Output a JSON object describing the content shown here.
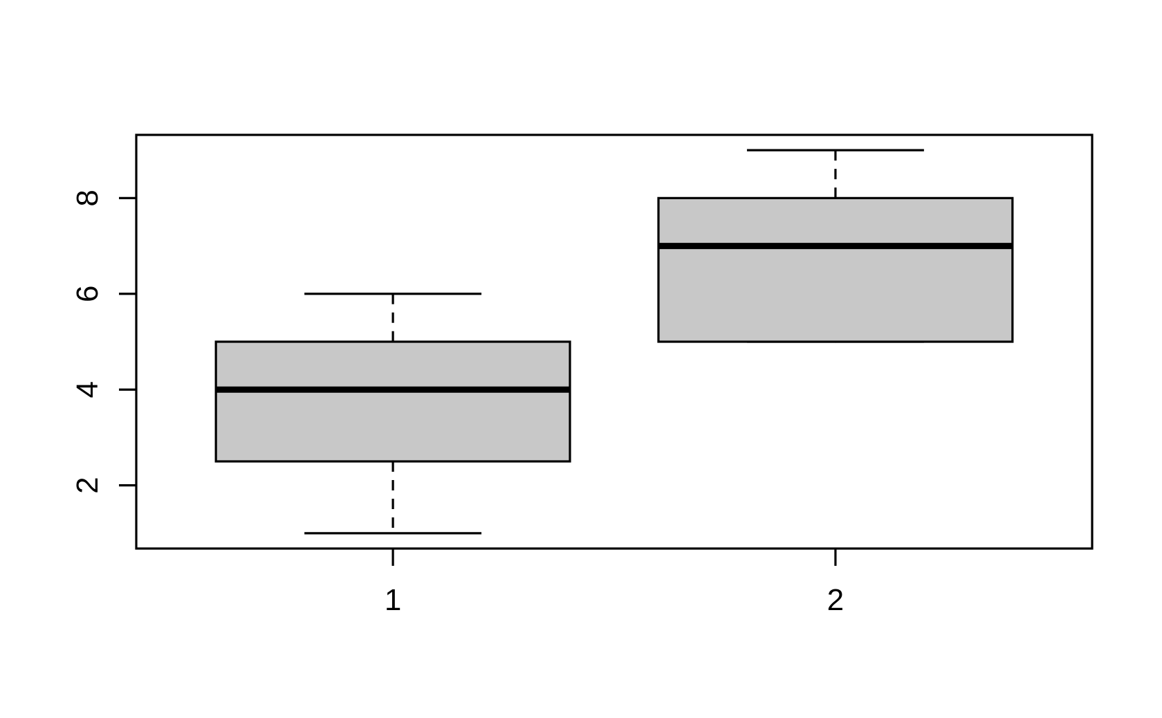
{
  "chart_data": {
    "type": "boxplot",
    "title": "",
    "xlabel": "",
    "ylabel": "",
    "categories": [
      "1",
      "2"
    ],
    "series": [
      {
        "name": "1",
        "min": 1,
        "q1": 2.5,
        "median": 4,
        "q3": 5,
        "max": 6
      },
      {
        "name": "2",
        "min": 5,
        "q1": 5,
        "median": 7,
        "q3": 8,
        "max": 9
      }
    ],
    "x_positions": [
      1,
      2
    ],
    "yticks": [
      2,
      4,
      6,
      8
    ],
    "ylim": [
      0.68,
      9.32
    ],
    "xlim": [
      0.42,
      2.58
    ],
    "box_width": 0.8,
    "cap_width": 0.4,
    "grid": false,
    "legend": null,
    "colors": {
      "box_fill": "#c8c8c8",
      "line": "#000000",
      "background": "#ffffff"
    }
  }
}
